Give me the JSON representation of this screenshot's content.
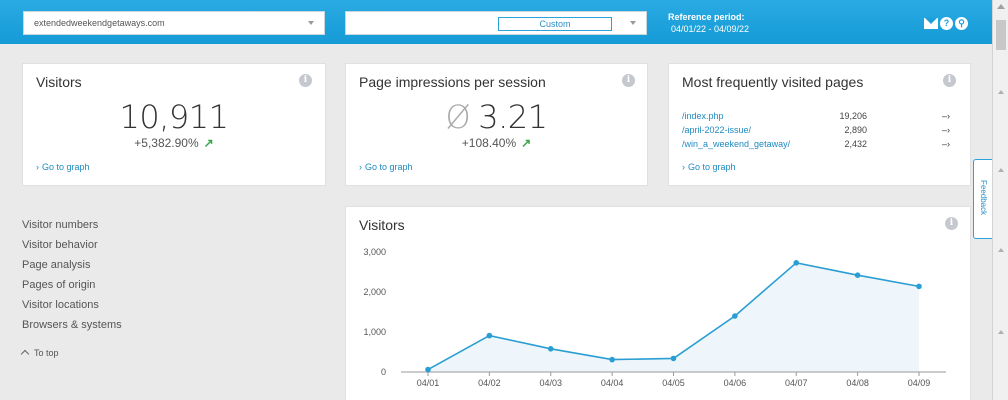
{
  "header": {
    "site_select": "extendedweekendgetaways.com",
    "period_select": "Custom",
    "reference_label": "Reference period:",
    "reference_range": "04/01/22 - 04/09/22",
    "icons": [
      "mail-icon",
      "help-icon",
      "link-icon"
    ]
  },
  "cards": {
    "visitors": {
      "title": "Visitors",
      "value": "10,911",
      "delta": "+5,382.90%",
      "link": "Go to graph"
    },
    "impressions": {
      "title": "Page impressions per session",
      "avg_symbol": "Ø",
      "value": "3.21",
      "delta": "+108.40%",
      "link": "Go to graph"
    },
    "pages": {
      "title": "Most frequently visited pages",
      "rows": [
        {
          "path": "/index.php",
          "count": "19,206"
        },
        {
          "path": "/april-2022-issue/",
          "count": "2,890"
        },
        {
          "path": "/win_a_weekend_getaway/",
          "count": "2,432"
        }
      ],
      "link": "Go to graph"
    }
  },
  "sidebar": {
    "items": [
      "Visitor numbers",
      "Visitor behavior",
      "Page analysis",
      "Pages of origin",
      "Visitor locations",
      "Browsers & systems"
    ],
    "to_top": "To top"
  },
  "feedback_label": "Feedback",
  "colors": {
    "accent": "#1f9ad6",
    "line": "#2a9ed3",
    "area": "#eef6fb",
    "up_arrow": "#3aa64a"
  },
  "chart_data": {
    "type": "area",
    "title": "Visitors",
    "categories": [
      "04/01",
      "04/02",
      "04/03",
      "04/04",
      "04/05",
      "04/06",
      "04/07",
      "04/08",
      "04/09"
    ],
    "series": [
      {
        "values": [
          60,
          910,
          580,
          310,
          340,
          1400,
          2730,
          2420,
          2140
        ]
      }
    ],
    "ylim": [
      0,
      3000
    ],
    "yticks": [
      "3,000",
      "2,000",
      "1,000",
      "0"
    ],
    "ytick_values": [
      3000,
      2000,
      1000,
      0
    ],
    "grid": false
  }
}
